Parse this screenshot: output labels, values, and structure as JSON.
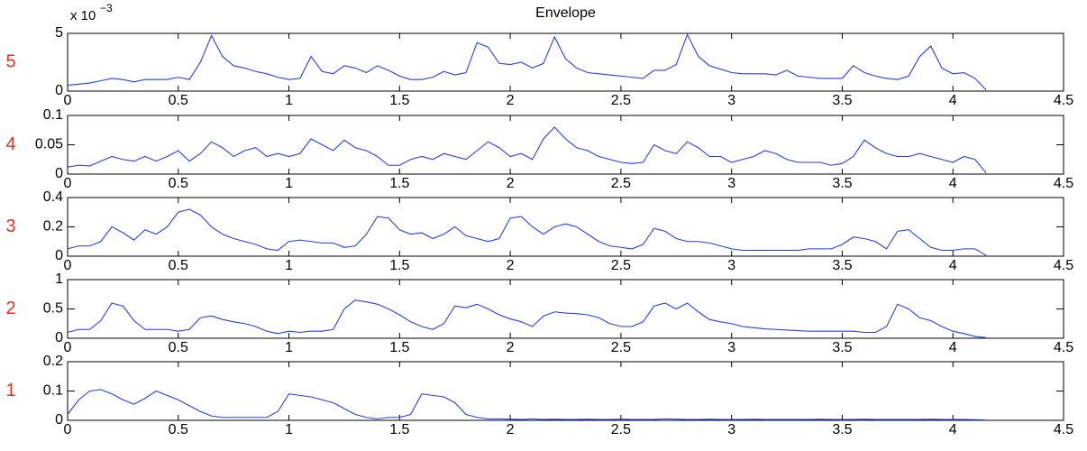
{
  "chart_data": [
    {
      "type": "line",
      "title": "Envelope",
      "panel_label": "5",
      "y_multiplier": {
        "base": "x 10",
        "exponent": "−3"
      },
      "x": [
        0,
        0.05,
        0.1,
        0.15,
        0.2,
        0.25,
        0.3,
        0.35,
        0.4,
        0.45,
        0.5,
        0.55,
        0.6,
        0.65,
        0.7,
        0.75,
        0.8,
        0.85,
        0.9,
        0.95,
        1,
        1.05,
        1.1,
        1.15,
        1.2,
        1.25,
        1.3,
        1.35,
        1.4,
        1.45,
        1.5,
        1.55,
        1.6,
        1.65,
        1.7,
        1.75,
        1.8,
        1.85,
        1.9,
        1.95,
        2,
        2.05,
        2.1,
        2.15,
        2.2,
        2.25,
        2.3,
        2.35,
        2.4,
        2.45,
        2.5,
        2.55,
        2.6,
        2.65,
        2.7,
        2.75,
        2.8,
        2.85,
        2.9,
        2.95,
        3,
        3.05,
        3.1,
        3.15,
        3.2,
        3.25,
        3.3,
        3.35,
        3.4,
        3.45,
        3.5,
        3.55,
        3.6,
        3.65,
        3.7,
        3.75,
        3.8,
        3.85,
        3.9,
        3.95,
        4,
        4.05,
        4.1,
        4.15
      ],
      "series": [
        {
          "color": "#2a3de8",
          "values": [
            0.5,
            0.6,
            0.7,
            0.9,
            1.1,
            1.0,
            0.8,
            1.0,
            1.0,
            1.0,
            1.2,
            1.0,
            2.5,
            4.8,
            3.0,
            2.2,
            2.0,
            1.7,
            1.5,
            1.2,
            1.0,
            1.1,
            3.0,
            1.7,
            1.5,
            2.2,
            2.0,
            1.6,
            2.2,
            1.8,
            1.3,
            1.0,
            1.0,
            1.2,
            1.7,
            1.4,
            1.6,
            4.2,
            3.8,
            2.4,
            2.3,
            2.5,
            2.0,
            2.4,
            4.7,
            2.8,
            2.0,
            1.6,
            1.5,
            1.4,
            1.3,
            1.2,
            1.1,
            1.8,
            1.8,
            2.3,
            4.9,
            3.0,
            2.2,
            1.9,
            1.6,
            1.5,
            1.5,
            1.5,
            1.4,
            1.8,
            1.3,
            1.2,
            1.1,
            1.1,
            1.1,
            2.2,
            1.6,
            1.3,
            1.1,
            1.0,
            1.3,
            3.0,
            3.9,
            2.0,
            1.5,
            1.6,
            1.1,
            0.1
          ]
        }
      ],
      "xlim": [
        0,
        4.5
      ],
      "xticks": [
        0,
        0.5,
        1,
        1.5,
        2,
        2.5,
        3,
        3.5,
        4,
        4.5
      ],
      "ylim": [
        0,
        5
      ],
      "yticks": [
        0,
        5
      ]
    },
    {
      "type": "line",
      "panel_label": "4",
      "x": [
        0,
        0.05,
        0.1,
        0.15,
        0.2,
        0.25,
        0.3,
        0.35,
        0.4,
        0.45,
        0.5,
        0.55,
        0.6,
        0.65,
        0.7,
        0.75,
        0.8,
        0.85,
        0.9,
        0.95,
        1,
        1.05,
        1.1,
        1.15,
        1.2,
        1.25,
        1.3,
        1.35,
        1.4,
        1.45,
        1.5,
        1.55,
        1.6,
        1.65,
        1.7,
        1.75,
        1.8,
        1.85,
        1.9,
        1.95,
        2,
        2.05,
        2.1,
        2.15,
        2.2,
        2.25,
        2.3,
        2.35,
        2.4,
        2.45,
        2.5,
        2.55,
        2.6,
        2.65,
        2.7,
        2.75,
        2.8,
        2.85,
        2.9,
        2.95,
        3,
        3.05,
        3.1,
        3.15,
        3.2,
        3.25,
        3.3,
        3.35,
        3.4,
        3.45,
        3.5,
        3.55,
        3.6,
        3.65,
        3.7,
        3.75,
        3.8,
        3.85,
        3.9,
        3.95,
        4,
        4.05,
        4.1,
        4.15
      ],
      "series": [
        {
          "color": "#2a3de8",
          "values": [
            0.012,
            0.015,
            0.014,
            0.022,
            0.03,
            0.025,
            0.022,
            0.03,
            0.022,
            0.03,
            0.04,
            0.022,
            0.035,
            0.055,
            0.045,
            0.03,
            0.04,
            0.045,
            0.03,
            0.035,
            0.03,
            0.035,
            0.06,
            0.05,
            0.04,
            0.058,
            0.045,
            0.04,
            0.03,
            0.015,
            0.015,
            0.025,
            0.03,
            0.025,
            0.035,
            0.03,
            0.025,
            0.04,
            0.055,
            0.045,
            0.03,
            0.035,
            0.025,
            0.06,
            0.08,
            0.06,
            0.045,
            0.04,
            0.03,
            0.025,
            0.02,
            0.018,
            0.02,
            0.05,
            0.04,
            0.035,
            0.055,
            0.045,
            0.03,
            0.03,
            0.02,
            0.025,
            0.03,
            0.04,
            0.035,
            0.025,
            0.02,
            0.02,
            0.02,
            0.015,
            0.018,
            0.03,
            0.058,
            0.045,
            0.035,
            0.03,
            0.03,
            0.035,
            0.03,
            0.025,
            0.02,
            0.03,
            0.025,
            0.002
          ]
        }
      ],
      "xlim": [
        0,
        4.5
      ],
      "xticks": [
        0,
        0.5,
        1,
        1.5,
        2,
        2.5,
        3,
        3.5,
        4,
        4.5
      ],
      "ylim": [
        0,
        0.1
      ],
      "yticks": [
        0,
        0.05,
        0.1
      ]
    },
    {
      "type": "line",
      "panel_label": "3",
      "x": [
        0,
        0.05,
        0.1,
        0.15,
        0.2,
        0.25,
        0.3,
        0.35,
        0.4,
        0.45,
        0.5,
        0.55,
        0.6,
        0.65,
        0.7,
        0.75,
        0.8,
        0.85,
        0.9,
        0.95,
        1,
        1.05,
        1.1,
        1.15,
        1.2,
        1.25,
        1.3,
        1.35,
        1.4,
        1.45,
        1.5,
        1.55,
        1.6,
        1.65,
        1.7,
        1.75,
        1.8,
        1.85,
        1.9,
        1.95,
        2,
        2.05,
        2.1,
        2.15,
        2.2,
        2.25,
        2.3,
        2.35,
        2.4,
        2.45,
        2.5,
        2.55,
        2.6,
        2.65,
        2.7,
        2.75,
        2.8,
        2.85,
        2.9,
        2.95,
        3,
        3.05,
        3.1,
        3.15,
        3.2,
        3.25,
        3.3,
        3.35,
        3.4,
        3.45,
        3.5,
        3.55,
        3.6,
        3.65,
        3.7,
        3.75,
        3.8,
        3.85,
        3.9,
        3.95,
        4,
        4.05,
        4.1,
        4.15
      ],
      "series": [
        {
          "color": "#2a3de8",
          "values": [
            0.05,
            0.07,
            0.07,
            0.1,
            0.2,
            0.16,
            0.11,
            0.18,
            0.15,
            0.2,
            0.3,
            0.32,
            0.28,
            0.2,
            0.15,
            0.12,
            0.1,
            0.08,
            0.05,
            0.04,
            0.1,
            0.11,
            0.1,
            0.09,
            0.09,
            0.06,
            0.07,
            0.15,
            0.27,
            0.26,
            0.18,
            0.15,
            0.16,
            0.12,
            0.15,
            0.2,
            0.14,
            0.12,
            0.1,
            0.12,
            0.26,
            0.27,
            0.2,
            0.15,
            0.2,
            0.22,
            0.2,
            0.15,
            0.1,
            0.07,
            0.06,
            0.05,
            0.08,
            0.19,
            0.17,
            0.12,
            0.1,
            0.1,
            0.09,
            0.07,
            0.05,
            0.04,
            0.04,
            0.04,
            0.04,
            0.04,
            0.04,
            0.05,
            0.05,
            0.05,
            0.08,
            0.13,
            0.12,
            0.1,
            0.05,
            0.17,
            0.18,
            0.12,
            0.06,
            0.04,
            0.04,
            0.05,
            0.05,
            0.005
          ]
        }
      ],
      "xlim": [
        0,
        4.5
      ],
      "xticks": [
        0,
        0.5,
        1,
        1.5,
        2,
        2.5,
        3,
        3.5,
        4,
        4.5
      ],
      "ylim": [
        0,
        0.4
      ],
      "yticks": [
        0,
        0.2,
        0.4
      ]
    },
    {
      "type": "line",
      "panel_label": "2",
      "x": [
        0,
        0.05,
        0.1,
        0.15,
        0.2,
        0.25,
        0.3,
        0.35,
        0.4,
        0.45,
        0.5,
        0.55,
        0.6,
        0.65,
        0.7,
        0.75,
        0.8,
        0.85,
        0.9,
        0.95,
        1,
        1.05,
        1.1,
        1.15,
        1.2,
        1.25,
        1.3,
        1.35,
        1.4,
        1.45,
        1.5,
        1.55,
        1.6,
        1.65,
        1.7,
        1.75,
        1.8,
        1.85,
        1.9,
        1.95,
        2,
        2.05,
        2.1,
        2.15,
        2.2,
        2.25,
        2.3,
        2.35,
        2.4,
        2.45,
        2.5,
        2.55,
        2.6,
        2.65,
        2.7,
        2.75,
        2.8,
        2.85,
        2.9,
        2.95,
        3,
        3.05,
        3.1,
        3.15,
        3.2,
        3.25,
        3.3,
        3.35,
        3.4,
        3.45,
        3.5,
        3.55,
        3.6,
        3.65,
        3.7,
        3.75,
        3.8,
        3.85,
        3.9,
        3.95,
        4,
        4.05,
        4.1,
        4.15
      ],
      "series": [
        {
          "color": "#2a3de8",
          "values": [
            0.1,
            0.15,
            0.15,
            0.3,
            0.6,
            0.55,
            0.3,
            0.15,
            0.15,
            0.15,
            0.12,
            0.15,
            0.35,
            0.38,
            0.32,
            0.28,
            0.25,
            0.2,
            0.12,
            0.08,
            0.12,
            0.1,
            0.12,
            0.12,
            0.15,
            0.5,
            0.65,
            0.62,
            0.58,
            0.5,
            0.4,
            0.28,
            0.2,
            0.15,
            0.25,
            0.55,
            0.52,
            0.58,
            0.5,
            0.4,
            0.33,
            0.28,
            0.2,
            0.38,
            0.45,
            0.43,
            0.42,
            0.4,
            0.35,
            0.25,
            0.2,
            0.2,
            0.28,
            0.55,
            0.6,
            0.5,
            0.6,
            0.45,
            0.32,
            0.28,
            0.25,
            0.2,
            0.18,
            0.16,
            0.15,
            0.14,
            0.13,
            0.12,
            0.12,
            0.12,
            0.12,
            0.12,
            0.1,
            0.1,
            0.2,
            0.58,
            0.5,
            0.35,
            0.3,
            0.2,
            0.12,
            0.08,
            0.03,
            0.01
          ]
        }
      ],
      "xlim": [
        0,
        4.5
      ],
      "xticks": [
        0,
        0.5,
        1,
        1.5,
        2,
        2.5,
        3,
        3.5,
        4,
        4.5
      ],
      "ylim": [
        0,
        1
      ],
      "yticks": [
        0,
        0.5,
        1
      ]
    },
    {
      "type": "line",
      "panel_label": "1",
      "x": [
        0,
        0.05,
        0.1,
        0.15,
        0.2,
        0.25,
        0.3,
        0.35,
        0.4,
        0.45,
        0.5,
        0.55,
        0.6,
        0.65,
        0.7,
        0.75,
        0.8,
        0.85,
        0.9,
        0.95,
        1,
        1.05,
        1.1,
        1.15,
        1.2,
        1.25,
        1.3,
        1.35,
        1.4,
        1.45,
        1.5,
        1.55,
        1.6,
        1.65,
        1.7,
        1.75,
        1.8,
        1.85,
        1.9,
        1.95,
        2,
        2.05,
        2.1,
        2.15,
        2.2,
        2.25,
        2.3,
        2.35,
        2.4,
        2.45,
        2.5,
        2.55,
        2.6,
        2.65,
        2.7,
        2.75,
        2.8,
        2.85,
        2.9,
        2.95,
        3,
        3.05,
        3.1,
        3.15,
        3.2,
        3.25,
        3.3,
        3.35,
        3.4,
        3.45,
        3.5,
        3.55,
        3.6,
        3.65,
        3.7,
        3.75,
        3.8,
        3.85,
        3.9,
        3.95,
        4,
        4.05,
        4.1,
        4.15
      ],
      "series": [
        {
          "color": "#2a3de8",
          "values": [
            0.02,
            0.07,
            0.1,
            0.105,
            0.09,
            0.07,
            0.055,
            0.075,
            0.1,
            0.085,
            0.07,
            0.05,
            0.03,
            0.015,
            0.01,
            0.01,
            0.01,
            0.01,
            0.01,
            0.03,
            0.09,
            0.085,
            0.08,
            0.07,
            0.06,
            0.04,
            0.02,
            0.01,
            0.005,
            0.01,
            0.01,
            0.02,
            0.09,
            0.085,
            0.08,
            0.06,
            0.02,
            0.01,
            0.005,
            0.005,
            0.004,
            0.003,
            0.005,
            0.003,
            0.004,
            0.003,
            0.003,
            0.004,
            0.003,
            0.003,
            0.004,
            0.003,
            0.003,
            0.003,
            0.005,
            0.004,
            0.003,
            0.003,
            0.004,
            0.003,
            0.003,
            0.003,
            0.004,
            0.003,
            0.003,
            0.003,
            0.003,
            0.003,
            0.004,
            0.003,
            0.003,
            0.003,
            0.004,
            0.003,
            0.003,
            0.003,
            0.003,
            0.003,
            0.004,
            0.003,
            0.003,
            0.003,
            0.002,
            0.001
          ]
        }
      ],
      "xlim": [
        0,
        4.5
      ],
      "xticks": [
        0,
        0.5,
        1,
        1.5,
        2,
        2.5,
        3,
        3.5,
        4,
        4.5
      ],
      "ylim": [
        0,
        0.2
      ],
      "yticks": [
        0,
        0.1,
        0.2
      ]
    }
  ]
}
